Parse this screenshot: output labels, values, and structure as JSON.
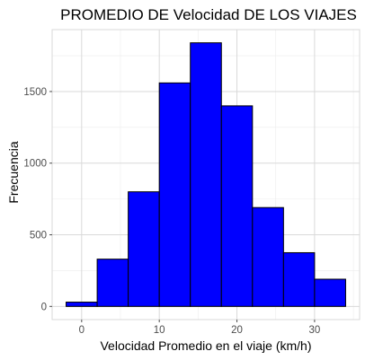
{
  "chart_data": {
    "type": "bar",
    "title": "PROMEDIO DE Velocidad DE LOS VIAJES",
    "xlabel": "Velocidad Promedio en el viaje (km/h)",
    "ylabel": "Frecuencia",
    "bar_color": "#0000ff",
    "bar_outline_color": "#000000",
    "bin_width": 4,
    "bins": [
      {
        "x0": -2,
        "x1": 2,
        "count": 30
      },
      {
        "x0": 2,
        "x1": 6,
        "count": 330
      },
      {
        "x0": 6,
        "x1": 10,
        "count": 800
      },
      {
        "x0": 10,
        "x1": 14,
        "count": 1560
      },
      {
        "x0": 14,
        "x1": 18,
        "count": 1840
      },
      {
        "x0": 18,
        "x1": 22,
        "count": 1400
      },
      {
        "x0": 22,
        "x1": 26,
        "count": 690
      },
      {
        "x0": 26,
        "x1": 30,
        "count": 375
      },
      {
        "x0": 30,
        "x1": 34,
        "count": 190
      }
    ],
    "xlim": [
      -3.8,
      35.8
    ],
    "ylim": [
      -92,
      1932
    ],
    "x_ticks": [
      0,
      10,
      20,
      30
    ],
    "y_ticks": [
      0,
      500,
      1000,
      1500
    ],
    "x_tick_labels": [
      "0",
      "10",
      "20",
      "30"
    ],
    "y_tick_labels": [
      "0",
      "500",
      "1000",
      "1500"
    ],
    "x_minor_ticks": [
      -5,
      5,
      15,
      25,
      35
    ],
    "y_minor_ticks": [
      250,
      750,
      1250,
      1750
    ],
    "grid": true,
    "theme": "light"
  }
}
